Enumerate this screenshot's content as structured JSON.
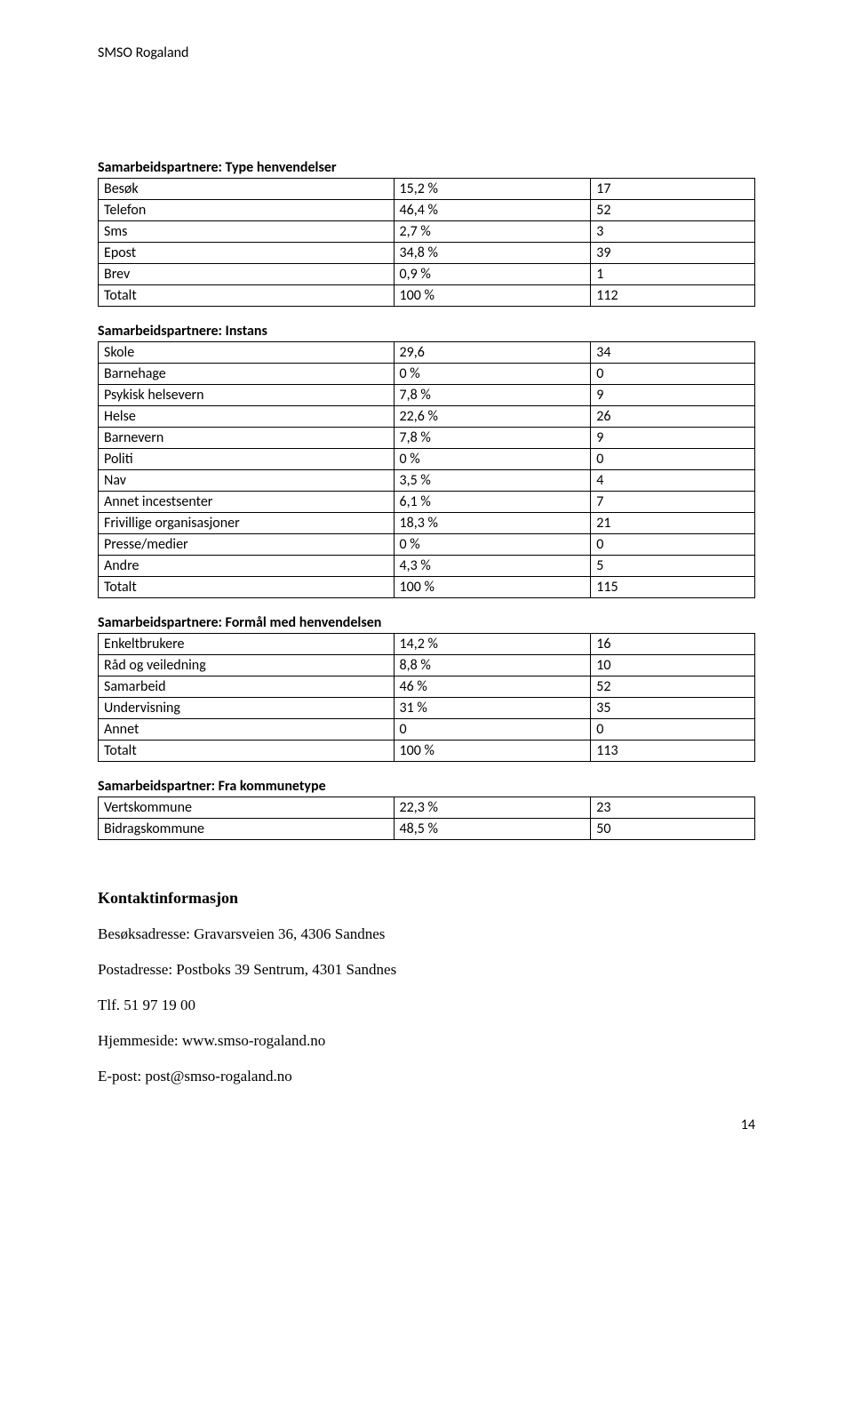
{
  "header": "SMSO Rogaland",
  "tables": {
    "t1": {
      "title": "Samarbeidspartnere: Type henvendelser",
      "rows": [
        [
          "Besøk",
          "15,2 %",
          "17"
        ],
        [
          "Telefon",
          "46,4 %",
          "52"
        ],
        [
          "Sms",
          "2,7 %",
          "3"
        ],
        [
          "Epost",
          "34,8 %",
          "39"
        ],
        [
          "Brev",
          "0,9 %",
          "1"
        ],
        [
          "Totalt",
          "100 %",
          "112"
        ]
      ]
    },
    "t2": {
      "title": "Samarbeidspartnere: Instans",
      "rows": [
        [
          "Skole",
          "29,6",
          "34"
        ],
        [
          "Barnehage",
          "0 %",
          "0"
        ],
        [
          "Psykisk helsevern",
          "7,8 %",
          "9"
        ],
        [
          "Helse",
          "22,6 %",
          "26"
        ],
        [
          "Barnevern",
          "7,8 %",
          "9"
        ],
        [
          "Politi",
          "0 %",
          "0"
        ],
        [
          "Nav",
          "3,5 %",
          "4"
        ],
        [
          "Annet incestsenter",
          "6,1 %",
          "7"
        ],
        [
          "Frivillige organisasjoner",
          "18,3 %",
          "21"
        ],
        [
          "Presse/medier",
          "0 %",
          "0"
        ],
        [
          "Andre",
          "4,3 %",
          "5"
        ],
        [
          "Totalt",
          "100 %",
          "115"
        ]
      ]
    },
    "t3": {
      "title": "Samarbeidspartnere: Formål med henvendelsen",
      "rows": [
        [
          "Enkeltbrukere",
          "14,2 %",
          "16"
        ],
        [
          "Råd og veiledning",
          "8,8 %",
          "10"
        ],
        [
          "Samarbeid",
          "46 %",
          "52"
        ],
        [
          "Undervisning",
          "31 %",
          "35"
        ],
        [
          "Annet",
          "0",
          "0"
        ],
        [
          "Totalt",
          "100 %",
          "113"
        ]
      ]
    },
    "t4": {
      "title": "Samarbeidspartner: Fra kommunetype",
      "rows": [
        [
          "Vertskommune",
          "22,3 %",
          "23"
        ],
        [
          "Bidragskommune",
          "48,5 %",
          "50"
        ]
      ]
    }
  },
  "contact": {
    "heading": "Kontaktinformasjon",
    "lines": [
      "Besøksadresse: Gravarsveien 36, 4306 Sandnes",
      "Postadresse: Postboks 39 Sentrum, 4301 Sandnes",
      "Tlf. 51 97 19 00",
      "Hjemmeside: www.smso-rogaland.no",
      "E-post: post@smso-rogaland.no"
    ]
  },
  "page_number": "14"
}
